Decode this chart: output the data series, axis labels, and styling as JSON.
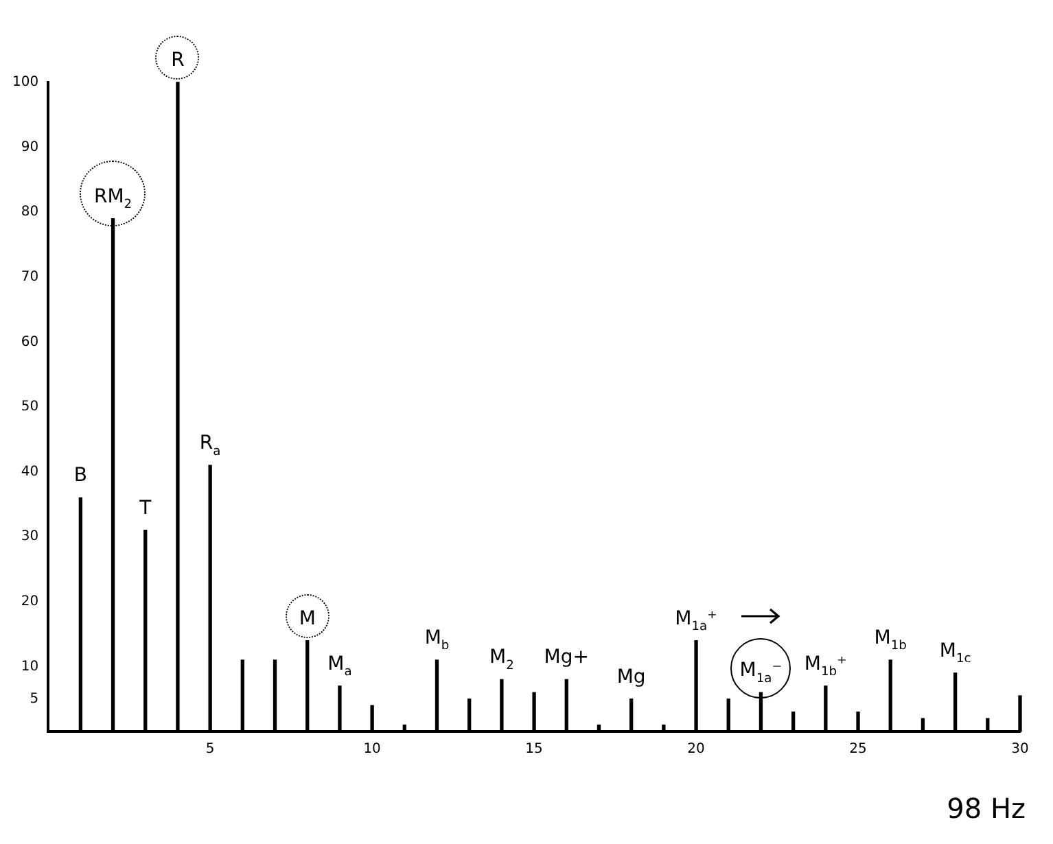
{
  "chart_data": {
    "type": "bar",
    "x": [
      1,
      2,
      3,
      4,
      5,
      6,
      7,
      8,
      9,
      10,
      11,
      12,
      13,
      14,
      15,
      16,
      17,
      18,
      19,
      20,
      21,
      22,
      23,
      24,
      25,
      26,
      27,
      28,
      29,
      30
    ],
    "values": [
      36,
      79,
      31,
      100,
      41,
      11,
      11,
      14,
      7,
      4,
      1,
      11,
      5,
      8,
      6,
      8,
      1,
      5,
      1,
      14,
      5,
      6,
      3,
      7,
      3,
      11,
      2,
      9,
      2,
      5.5
    ],
    "color": "#000000",
    "xlim": [
      0,
      30
    ],
    "xticks": [
      5,
      10,
      15,
      20,
      25,
      30
    ],
    "ylim": [
      0,
      100
    ],
    "yticks": [
      5,
      10,
      20,
      30,
      40,
      50,
      60,
      70,
      80,
      90,
      100
    ],
    "grid": false,
    "legend": false,
    "annotations": [
      {
        "text": "B",
        "x": 1,
        "y": 36
      },
      {
        "text": "RM$_{2}$",
        "x": 2,
        "y": 79
      },
      {
        "text": "T",
        "x": 3,
        "y": 31
      },
      {
        "text": "R",
        "x": 4,
        "y": 100
      },
      {
        "text": "R$_{a}$",
        "x": 5,
        "y": 41
      },
      {
        "text": "M",
        "x": 8,
        "y": 14
      },
      {
        "text": "M$_{a}$",
        "x": 9,
        "y": 7
      },
      {
        "text": "M$_{b}$",
        "x": 12,
        "y": 11
      },
      {
        "text": "M$_{2}$",
        "x": 14,
        "y": 8
      },
      {
        "text": "Mg+",
        "x": 16,
        "y": 8
      },
      {
        "text": "Mg",
        "x": 18,
        "y": 5
      },
      {
        "text": "M$_{1a}$⁺",
        "x": 20,
        "y": 14
      },
      {
        "text": "M$_{1a}$⁻",
        "x": 22,
        "y": 6
      },
      {
        "text": "M$_{1b}$⁺",
        "x": 24,
        "y": 7
      },
      {
        "text": "M$_{1b}$",
        "x": 26,
        "y": 11
      },
      {
        "text": "M$_{1c}$",
        "x": 28,
        "y": 9
      },
      "98 Hz"
    ]
  }
}
